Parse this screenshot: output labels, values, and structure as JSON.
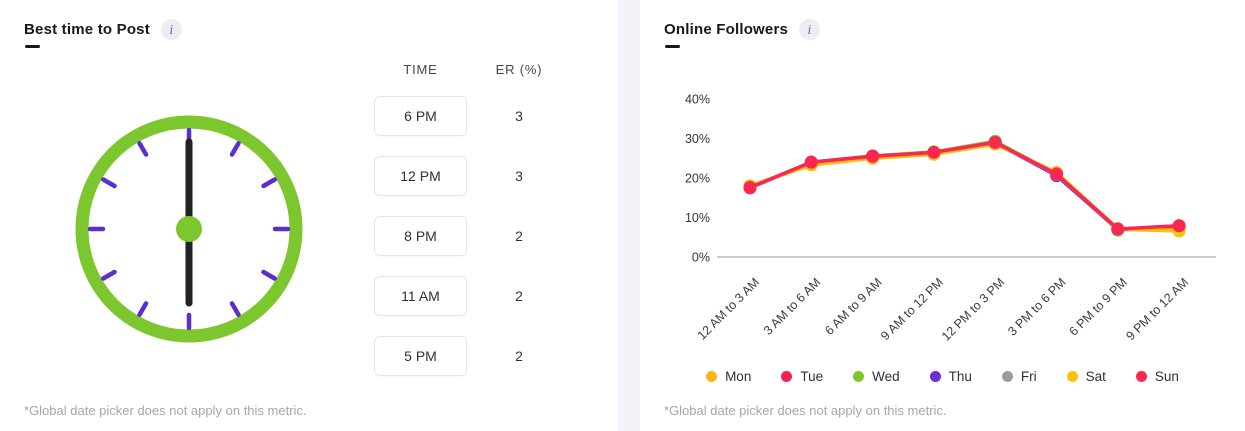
{
  "left_panel": {
    "title": "Best time to Post",
    "info_icon": "i",
    "clock": {
      "time_shown": "6:00",
      "ring_color": "#7CC62E",
      "tick_color": "#5A2ECF",
      "hand_color": "#222222",
      "center_dot_color": "#7CC62E"
    },
    "table": {
      "headers": [
        "TIME",
        "ER (%)"
      ],
      "rows": [
        {
          "time": "6 PM",
          "er": "3"
        },
        {
          "time": "12 PM",
          "er": "3"
        },
        {
          "time": "8 PM",
          "er": "2"
        },
        {
          "time": "11 AM",
          "er": "2"
        },
        {
          "time": "5 PM",
          "er": "2"
        }
      ]
    },
    "footnote": "*Global date picker does not apply on this metric."
  },
  "right_panel": {
    "title": "Online Followers",
    "info_icon": "i",
    "footnote": "*Global date picker does not apply on this metric."
  },
  "chart_data": {
    "type": "line",
    "title": "Online Followers",
    "categories": [
      "12 AM to 3 AM",
      "3 AM to 6 AM",
      "6 AM to 9 AM",
      "9 AM to 12 PM",
      "12 PM to 3 PM",
      "3 PM to 6 PM",
      "6 PM to 9 PM",
      "9 PM to 12 AM"
    ],
    "series": [
      {
        "name": "Mon",
        "color": "#FDB515",
        "values": [
          18,
          23.3,
          25,
          26,
          28.6,
          21.4,
          7,
          6.6
        ]
      },
      {
        "name": "Tue",
        "color": "#F5244E",
        "values": [
          17.6,
          24,
          25.5,
          26.5,
          29,
          20.9,
          7,
          7.9
        ]
      },
      {
        "name": "Wed",
        "color": "#7DC62E",
        "values": [
          17.6,
          24,
          25.6,
          26.6,
          29.3,
          21,
          6.8,
          7.6
        ]
      },
      {
        "name": "Thu",
        "color": "#6A30D8",
        "values": [
          17.5,
          24,
          25.5,
          26.4,
          29,
          20.6,
          7,
          7.6
        ]
      },
      {
        "name": "Fri",
        "color": "#9B9B9B",
        "values": [
          17.5,
          23.9,
          25.4,
          26.4,
          29,
          20.9,
          7,
          7.6
        ]
      },
      {
        "name": "Sat",
        "color": "#FFC107",
        "values": [
          18,
          23.4,
          25.2,
          26.1,
          28.8,
          21.3,
          7.2,
          6.6
        ]
      },
      {
        "name": "Sun",
        "color": "#FA2850",
        "values": [
          17.6,
          24,
          25.5,
          26.5,
          29,
          21,
          7.1,
          7.9
        ]
      }
    ],
    "y_ticks": [
      "0%",
      "10%",
      "20%",
      "30%",
      "40%"
    ],
    "ylim": [
      0,
      40
    ],
    "grid": false,
    "legend_position": "bottom"
  }
}
